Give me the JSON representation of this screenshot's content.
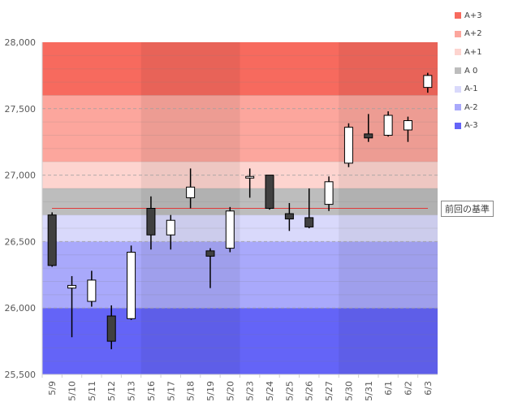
{
  "chart_data": {
    "type": "candlestick",
    "categories": [
      "5/9",
      "5/10",
      "5/11",
      "5/12",
      "5/13",
      "5/16",
      "5/17",
      "5/18",
      "5/19",
      "5/20",
      "5/23",
      "5/24",
      "5/25",
      "5/26",
      "5/27",
      "5/30",
      "5/31",
      "6/1",
      "6/2",
      "6/3"
    ],
    "ohlc": [
      {
        "open": 26700,
        "high": 26720,
        "low": 26310,
        "close": 26320
      },
      {
        "open": 26150,
        "high": 26240,
        "low": 25780,
        "close": 26170
      },
      {
        "open": 26050,
        "high": 26280,
        "low": 26010,
        "close": 26210
      },
      {
        "open": 25940,
        "high": 26020,
        "low": 25690,
        "close": 25750
      },
      {
        "open": 25920,
        "high": 26470,
        "low": 25910,
        "close": 26420
      },
      {
        "open": 26750,
        "high": 26840,
        "low": 26440,
        "close": 26550
      },
      {
        "open": 26550,
        "high": 26700,
        "low": 26440,
        "close": 26660
      },
      {
        "open": 26830,
        "high": 27050,
        "low": 26750,
        "close": 26910
      },
      {
        "open": 26430,
        "high": 26450,
        "low": 26150,
        "close": 26390
      },
      {
        "open": 26450,
        "high": 26760,
        "low": 26420,
        "close": 26730
      },
      {
        "open": 26990,
        "high": 27050,
        "low": 26830,
        "close": 26990
      },
      {
        "open": 27000,
        "high": 27000,
        "low": 26740,
        "close": 26750
      },
      {
        "open": 26710,
        "high": 26790,
        "low": 26580,
        "close": 26670
      },
      {
        "open": 26680,
        "high": 26900,
        "low": 26600,
        "close": 26610
      },
      {
        "open": 26780,
        "high": 26990,
        "low": 26730,
        "close": 26950
      },
      {
        "open": 27090,
        "high": 27390,
        "low": 27060,
        "close": 27360
      },
      {
        "open": 27310,
        "high": 27460,
        "low": 27250,
        "close": 27280
      },
      {
        "open": 27300,
        "high": 27480,
        "low": 27290,
        "close": 27450
      },
      {
        "open": 27340,
        "high": 27440,
        "low": 27250,
        "close": 27410
      },
      {
        "open": 27660,
        "high": 27770,
        "low": 27620,
        "close": 27750
      }
    ],
    "ylim": [
      25500,
      28000
    ],
    "yticks": [
      25500,
      26000,
      26500,
      27000,
      27500,
      28000
    ],
    "ytick_labels": [
      "25,500",
      "26,000",
      "26,500",
      "27,000",
      "27,500",
      "28,000"
    ],
    "reference_line": {
      "value": 26750,
      "label": "前回の基準",
      "color": "#e03a3a"
    },
    "bands": [
      {
        "name": "A+3",
        "from": 27600,
        "to": 28000,
        "color": "#f76a5e"
      },
      {
        "name": "A+2",
        "from": 27100,
        "to": 27600,
        "color": "#fca69d"
      },
      {
        "name": "A+1",
        "from": 26900,
        "to": 27100,
        "color": "#fdd4cf"
      },
      {
        "name": "A 0",
        "from": 26700,
        "to": 26900,
        "color": "#bdbdbd"
      },
      {
        "name": "A-1",
        "from": 26500,
        "to": 26700,
        "color": "#d9d9fb"
      },
      {
        "name": "A-2",
        "from": 26000,
        "to": 26500,
        "color": "#a9a9fb"
      },
      {
        "name": "A-3",
        "from": 25500,
        "to": 26000,
        "color": "#6464f7"
      }
    ],
    "week_shade_groups": [
      [
        5,
        9
      ],
      [
        15,
        19
      ]
    ],
    "up_color": "#ffffff",
    "down_color": "#404040",
    "grid": true,
    "legend_position": "right"
  }
}
